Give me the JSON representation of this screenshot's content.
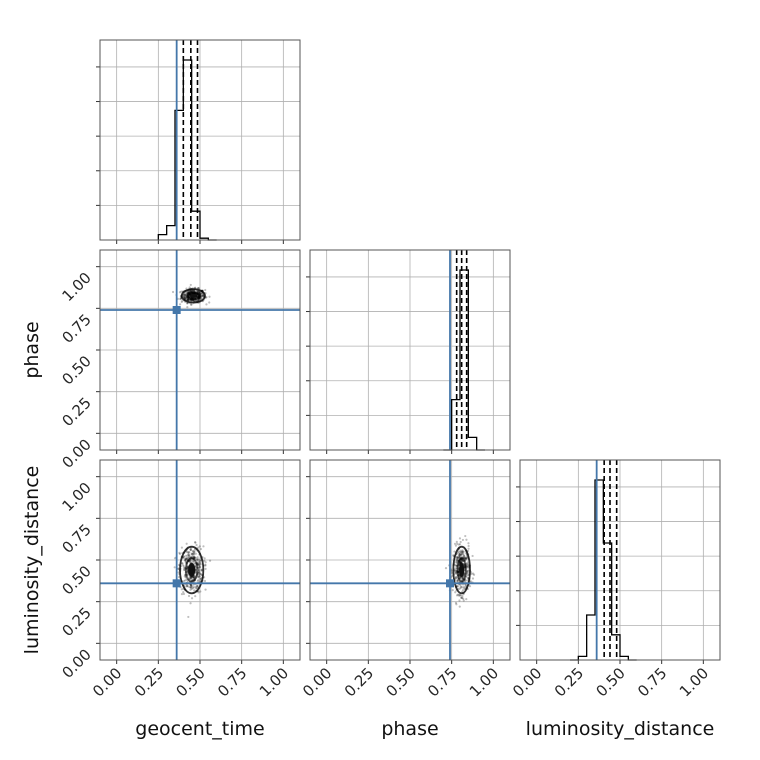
{
  "chart_data": {
    "type": "corner",
    "parameters": [
      "geocent_time",
      "phase",
      "luminosity_distance"
    ],
    "axis_range": [
      -0.1,
      1.1
    ],
    "ticks": [
      0.0,
      0.25,
      0.5,
      0.75,
      1.0
    ],
    "tick_labels": [
      "0.00",
      "0.25",
      "0.50",
      "0.75",
      "1.00"
    ],
    "grid": true,
    "truths": {
      "geocent_time": 0.36,
      "phase": 0.74,
      "luminosity_distance": 0.36
    },
    "truth_color": "#4477aa",
    "histograms": {
      "geocent_time": {
        "edges": [
          0.25,
          0.3,
          0.35,
          0.4,
          0.45,
          0.5,
          0.55,
          0.6
        ],
        "counts": [
          0.03,
          0.08,
          0.72,
          1.0,
          0.16,
          0.01,
          0.0
        ],
        "quantiles": [
          0.4,
          0.445,
          0.485
        ]
      },
      "phase": {
        "edges": [
          0.7,
          0.75,
          0.8,
          0.85,
          0.9,
          0.95
        ],
        "counts": [
          0.0,
          0.28,
          1.0,
          0.07,
          0.0
        ],
        "quantiles": [
          0.78,
          0.81,
          0.84
        ]
      },
      "luminosity_distance": {
        "edges": [
          0.2,
          0.25,
          0.3,
          0.35,
          0.4,
          0.45,
          0.5,
          0.55,
          0.6
        ],
        "counts": [
          0.0,
          0.02,
          0.25,
          1.0,
          0.65,
          0.14,
          0.02,
          0.0
        ],
        "quantiles": [
          0.405,
          0.44,
          0.48
        ]
      }
    },
    "scatter_2d": [
      {
        "x": "geocent_time",
        "y": "phase",
        "center": [
          0.46,
          0.825
        ],
        "spread": [
          0.035,
          0.02
        ]
      },
      {
        "x": "geocent_time",
        "y": "luminosity_distance",
        "center": [
          0.45,
          0.44
        ],
        "spread": [
          0.035,
          0.07
        ]
      },
      {
        "x": "phase",
        "y": "luminosity_distance",
        "center": [
          0.81,
          0.44
        ],
        "spread": [
          0.025,
          0.07
        ]
      }
    ]
  }
}
